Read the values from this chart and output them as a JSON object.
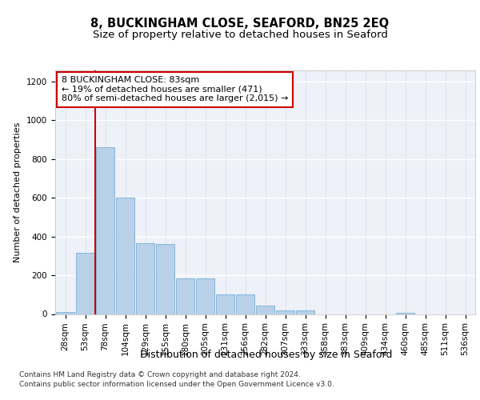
{
  "title": "8, BUCKINGHAM CLOSE, SEAFORD, BN25 2EQ",
  "subtitle": "Size of property relative to detached houses in Seaford",
  "xlabel": "Distribution of detached houses by size in Seaford",
  "ylabel": "Number of detached properties",
  "categories": [
    "28sqm",
    "53sqm",
    "78sqm",
    "104sqm",
    "129sqm",
    "155sqm",
    "180sqm",
    "205sqm",
    "231sqm",
    "256sqm",
    "282sqm",
    "307sqm",
    "333sqm",
    "358sqm",
    "383sqm",
    "409sqm",
    "434sqm",
    "460sqm",
    "485sqm",
    "511sqm",
    "536sqm"
  ],
  "values": [
    10,
    315,
    860,
    600,
    365,
    360,
    185,
    185,
    100,
    100,
    45,
    20,
    20,
    0,
    0,
    0,
    0,
    7,
    0,
    0,
    0
  ],
  "bar_color": "#b8d0e8",
  "bar_edge_color": "#7aafd4",
  "vline_x_index": 2,
  "vline_color": "#cc0000",
  "annotation_text_line1": "8 BUCKINGHAM CLOSE: 83sqm",
  "annotation_text_line2": "← 19% of detached houses are smaller (471)",
  "annotation_text_line3": "80% of semi-detached houses are larger (2,015) →",
  "annotation_box_facecolor": "#ffffff",
  "annotation_box_edgecolor": "#cc0000",
  "ylim": [
    0,
    1260
  ],
  "yticks": [
    0,
    200,
    400,
    600,
    800,
    1000,
    1200
  ],
  "background_color": "#eef2f8",
  "grid_color": "#d0d8e8",
  "footer_line1": "Contains HM Land Registry data © Crown copyright and database right 2024.",
  "footer_line2": "Contains public sector information licensed under the Open Government Licence v3.0.",
  "title_fontsize": 10.5,
  "subtitle_fontsize": 9.5,
  "xlabel_fontsize": 9,
  "ylabel_fontsize": 8,
  "tick_fontsize": 7.5,
  "annotation_fontsize": 8,
  "footer_fontsize": 6.5
}
